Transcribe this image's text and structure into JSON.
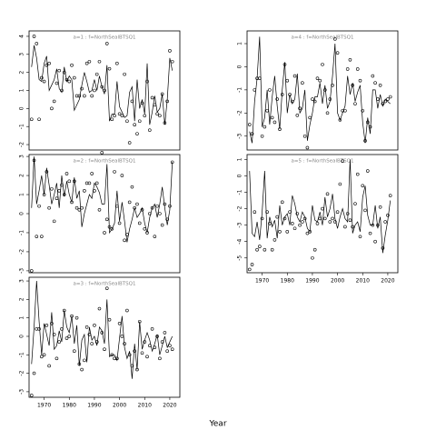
{
  "xlabel": "Year",
  "chart_data": [
    {
      "type": "line",
      "title": "a=1 : f=NorthSealBTSQ1",
      "x": [
        1965,
        1966,
        1967,
        1968,
        1969,
        1970,
        1971,
        1972,
        1973,
        1974,
        1975,
        1976,
        1977,
        1978,
        1979,
        1980,
        1981,
        1982,
        1983,
        1984,
        1985,
        1986,
        1987,
        1988,
        1989,
        1990,
        1991,
        1992,
        1993,
        1994,
        1995,
        1996,
        1997,
        1998,
        1999,
        2000,
        2001,
        2002,
        2003,
        2004,
        2005,
        2006,
        2007,
        2008,
        2009,
        2010,
        2011,
        2012,
        2013,
        2014,
        2015,
        2016,
        2017,
        2018,
        2019,
        2020,
        2021
      ],
      "xlim": [
        1964,
        2024
      ],
      "ylim": [
        -2.3,
        4.3
      ],
      "yticks": [
        -2,
        -1,
        0,
        1,
        2,
        3,
        4
      ],
      "series": [
        {
          "type": "line",
          "color": "#000000",
          "values": [
            2.3,
            3.5,
            2.8,
            1.6,
            1.5,
            2.5,
            2.9,
            1.0,
            1.3,
            1.6,
            2.2,
            1.1,
            0.9,
            2.3,
            1.5,
            1.8,
            1.6,
            -0.1,
            0.2,
            0.5,
            1.3,
            2.0,
            1.5,
            0.9,
            1.0,
            1.6,
            1.0,
            1.8,
            1.2,
            0.8,
            2.4,
            -0.7,
            -0.3,
            -0.3,
            1.5,
            0.1,
            -0.2,
            -0.5,
            -0.4,
            0.9,
            1.2,
            -0.7,
            1.6,
            0.0,
            0.5,
            -0.3,
            2.5,
            -0.9,
            -0.2,
            0.7,
            -0.2,
            0.0,
            0.8,
            -0.9,
            0.5,
            2.8,
            2.1
          ]
        },
        {
          "type": "scatter",
          "color": "#000000",
          "values": [
            -0.6,
            4.0,
            3.6,
            -0.6,
            1.7,
            1.5,
            2.4,
            2.5,
            0.0,
            0.4,
            1.4,
            2.1,
            1.0,
            2.0,
            1.6,
            1.5,
            2.4,
            1.7,
            0.7,
            0.7,
            1.1,
            0.7,
            2.5,
            2.6,
            0.7,
            1.0,
            1.9,
            2.6,
            1.2,
            1.0,
            3.6,
            2.2,
            -0.6,
            -0.4,
            2.5,
            -0.3,
            -0.4,
            1.9,
            -0.7,
            -1.9,
            0.4,
            -0.9,
            -1.4,
            -0.7,
            0.3,
            -0.4,
            1.5,
            -1.2,
            0.6,
            0.2,
            -0.3,
            -0.4,
            0.8,
            -0.8,
            0.4,
            3.2,
            2.6
          ]
        }
      ]
    },
    {
      "type": "line",
      "title": "a=2 : f=NorthSealBTSQ1",
      "x": [
        1965,
        1966,
        1967,
        1968,
        1969,
        1970,
        1971,
        1972,
        1973,
        1974,
        1975,
        1976,
        1977,
        1978,
        1979,
        1980,
        1981,
        1982,
        1983,
        1984,
        1985,
        1986,
        1987,
        1988,
        1989,
        1990,
        1991,
        1992,
        1993,
        1994,
        1995,
        1996,
        1997,
        1998,
        1999,
        2000,
        2001,
        2002,
        2003,
        2004,
        2005,
        2006,
        2007,
        2008,
        2009,
        2010,
        2011,
        2012,
        2013,
        2014,
        2015,
        2016,
        2017,
        2018,
        2019,
        2020,
        2021
      ],
      "xlim": [
        1964,
        2024
      ],
      "ylim": [
        -3.1,
        3.1
      ],
      "yticks": [
        -3,
        -2,
        -1,
        0,
        1,
        2,
        3
      ],
      "series": [
        {
          "type": "line",
          "color": "#000000",
          "values": [
            0.3,
            3.0,
            0.5,
            1.2,
            2.0,
            1.0,
            2.4,
            1.5,
            0.5,
            1.0,
            1.6,
            0.3,
            2.0,
            0.9,
            1.7,
            1.0,
            0.6,
            1.9,
            0.8,
            1.2,
            -0.7,
            0.0,
            0.5,
            1.0,
            0.8,
            1.6,
            1.4,
            1.1,
            0.5,
            0.5,
            2.6,
            -1.0,
            -0.8,
            -0.5,
            1.2,
            -0.4,
            0.6,
            -0.4,
            -1.5,
            -0.8,
            -0.3,
            0.3,
            -0.2,
            0.0,
            0.3,
            -0.5,
            -1.0,
            -0.2,
            0.3,
            0.5,
            -0.2,
            0.5,
            1.4,
            0.3,
            -0.6,
            0.2,
            2.7
          ]
        },
        {
          "type": "scatter",
          "color": "#000000",
          "values": [
            -3.0,
            2.8,
            -1.2,
            0.4,
            -1.2,
            1.0,
            2.2,
            0.3,
            1.3,
            -0.4,
            0.8,
            1.2,
            1.5,
            1.0,
            2.1,
            1.7,
            0.6,
            1.7,
            0.3,
            0.2,
            0.3,
            1.2,
            1.6,
            1.6,
            2.1,
            1.2,
            1.6,
            0.2,
            3.2,
            -1.0,
            -0.3,
            -0.7,
            -0.8,
            2.2,
            0.4,
            -0.5,
            2.0,
            -1.4,
            -1.1,
            0.6,
            1.4,
            0.3,
            0.5,
            -0.5,
            0.2,
            -0.8,
            -1.0,
            0.0,
            0.3,
            -1.2,
            0.4,
            0.0,
            -0.6,
            0.5,
            -0.3,
            0.4,
            2.7
          ]
        }
      ]
    },
    {
      "type": "line",
      "title": "a=3 : f=NorthSealBTSQ1",
      "x": [
        1965,
        1966,
        1967,
        1968,
        1969,
        1970,
        1971,
        1972,
        1973,
        1974,
        1975,
        1976,
        1977,
        1978,
        1979,
        1980,
        1981,
        1982,
        1983,
        1984,
        1985,
        1986,
        1987,
        1988,
        1989,
        1990,
        1991,
        1992,
        1993,
        1994,
        1995,
        1996,
        1997,
        1998,
        1999,
        2000,
        2001,
        2002,
        2003,
        2004,
        2005,
        2006,
        2007,
        2008,
        2009,
        2010,
        2011,
        2012,
        2013,
        2014,
        2015,
        2016,
        2017,
        2018,
        2019,
        2020,
        2021
      ],
      "xlim": [
        1964,
        2024
      ],
      "ylim": [
        -3.3,
        3.2
      ],
      "yticks": [
        -3,
        -2,
        -1,
        0,
        1,
        2,
        3
      ],
      "xticks": [
        1970,
        1980,
        1990,
        2000,
        2010,
        2020
      ],
      "series": [
        {
          "type": "line",
          "color": "#000000",
          "values": [
            -1.5,
            0.5,
            3.0,
            0.8,
            -1.0,
            0.7,
            0.1,
            -0.5,
            1.3,
            -0.7,
            -0.5,
            0.3,
            -0.3,
            1.4,
            0.5,
            0.2,
            1.1,
            -0.4,
            0.6,
            -1.6,
            -0.2,
            0.1,
            -1.4,
            0.5,
            -0.2,
            0.0,
            -0.5,
            0.5,
            0.3,
            -0.4,
            2.0,
            -1.1,
            -1.0,
            -1.0,
            -1.3,
            -0.1,
            1.1,
            -0.6,
            -1.2,
            -0.8,
            -2.3,
            -0.4,
            -1.8,
            0.8,
            -0.7,
            -0.2,
            0.2,
            -0.2,
            -0.8,
            -0.4,
            0.1,
            -1.0,
            -0.5,
            0.0,
            -0.6,
            -0.3,
            0.0
          ]
        },
        {
          "type": "scatter",
          "color": "#000000",
          "values": [
            -3.2,
            -2.0,
            0.4,
            0.4,
            -1.1,
            -1.0,
            0.6,
            -1.6,
            0.7,
            0.1,
            -1.2,
            -0.3,
            0.4,
            1.4,
            -0.1,
            0.0,
            1.1,
            -0.8,
            1.0,
            -1.5,
            -1.8,
            -1.3,
            0.5,
            0.1,
            -0.4,
            0.6,
            -0.3,
            1.5,
            0.2,
            -0.7,
            2.6,
            0.9,
            -1.0,
            -1.2,
            -1.2,
            0.7,
            0.0,
            -0.4,
            1.4,
            -1.0,
            -1.6,
            -0.8,
            -1.8,
            0.8,
            -0.9,
            -0.3,
            -1.1,
            -0.5,
            0.4,
            -0.6,
            0.0,
            -1.2,
            -0.3,
            0.2,
            -0.8,
            -0.5,
            -0.7
          ]
        }
      ]
    },
    {
      "type": "line",
      "title": "a=4 : f=NorthSealBTSQ1",
      "x": [
        1965,
        1966,
        1967,
        1968,
        1969,
        1970,
        1971,
        1972,
        1973,
        1974,
        1975,
        1976,
        1977,
        1978,
        1979,
        1980,
        1981,
        1982,
        1983,
        1984,
        1985,
        1986,
        1987,
        1988,
        1989,
        1990,
        1991,
        1992,
        1993,
        1994,
        1995,
        1996,
        1997,
        1998,
        1999,
        2000,
        2001,
        2002,
        2003,
        2004,
        2005,
        2006,
        2007,
        2008,
        2009,
        2010,
        2011,
        2012,
        2013,
        2014,
        2015,
        2016,
        2017,
        2018,
        2019,
        2020,
        2021
      ],
      "xlim": [
        1964,
        2024
      ],
      "ylim": [
        -3.6,
        1.55
      ],
      "yticks": [
        -3,
        -2,
        -1,
        0,
        1
      ],
      "series": [
        {
          "type": "line",
          "color": "#000000",
          "values": [
            -2.8,
            -3.3,
            -1.5,
            -0.5,
            1.3,
            -2.6,
            -2.2,
            -1.0,
            -2.5,
            -1.3,
            -0.4,
            -1.7,
            -2.7,
            -1.0,
            0.2,
            -2.0,
            -1.2,
            -1.6,
            -1.4,
            -0.3,
            -2.0,
            -1.8,
            -1.0,
            -3.2,
            -2.5,
            -2.0,
            -1.3,
            -1.3,
            -0.7,
            -1.6,
            -0.8,
            -1.8,
            -1.5,
            -0.4,
            1.0,
            -2.0,
            -2.3,
            -2.0,
            -1.7,
            -0.4,
            -1.2,
            -0.7,
            -1.5,
            -1.1,
            -0.8,
            -2.4,
            -3.3,
            -2.2,
            -2.9,
            -1.0,
            -1.0,
            -1.8,
            -1.2,
            -1.7,
            -1.4,
            -1.5,
            -1.6
          ]
        },
        {
          "type": "scatter",
          "color": "#000000",
          "values": [
            -2.5,
            -2.9,
            -1.0,
            -0.5,
            -0.5,
            -3.0,
            -2.6,
            -1.9,
            -1.0,
            -2.2,
            -2.4,
            -1.4,
            -2.7,
            -1.2,
            0.1,
            -0.6,
            -1.2,
            -1.5,
            -0.4,
            -2.1,
            -1.8,
            -0.7,
            -3.0,
            -3.5,
            -2.2,
            -1.4,
            -1.5,
            -0.5,
            -0.6,
            0.1,
            -1.0,
            -2.0,
            -1.4,
            -0.8,
            1.2,
            0.6,
            -2.3,
            -1.9,
            -1.9,
            -0.1,
            0.3,
            -0.8,
            -1.6,
            -0.1,
            -0.6,
            -1.9,
            -3.2,
            -2.4,
            -2.6,
            -0.4,
            -0.7,
            -1.4,
            -0.8,
            -1.6,
            -1.5,
            -1.4,
            -1.3
          ]
        }
      ]
    },
    {
      "type": "line",
      "title": "a=5 : f=NorthSealBTSQ1",
      "x": [
        1965,
        1966,
        1967,
        1968,
        1969,
        1970,
        1971,
        1972,
        1973,
        1974,
        1975,
        1976,
        1977,
        1978,
        1979,
        1980,
        1981,
        1982,
        1983,
        1984,
        1985,
        1986,
        1987,
        1988,
        1989,
        1990,
        1991,
        1992,
        1993,
        1994,
        1995,
        1996,
        1997,
        1998,
        1999,
        2000,
        2001,
        2002,
        2003,
        2004,
        2005,
        2006,
        2007,
        2008,
        2009,
        2010,
        2011,
        2012,
        2013,
        2014,
        2015,
        2016,
        2017,
        2018,
        2019,
        2020,
        2021
      ],
      "xlim": [
        1964,
        2024
      ],
      "ylim": [
        -5.9,
        1.3
      ],
      "yticks": [
        -5,
        -4,
        -3,
        -2,
        -1,
        0,
        1
      ],
      "xticks": [
        1970,
        1980,
        1990,
        2000,
        2010,
        2020
      ],
      "series": [
        {
          "type": "line",
          "color": "#000000",
          "values": [
            0.3,
            -3.5,
            -3.7,
            -2.8,
            -3.9,
            -2.2,
            0.3,
            -3.8,
            -2.5,
            -3.1,
            -2.7,
            -3.8,
            -1.8,
            -3.0,
            -2.5,
            -2.3,
            -3.0,
            -1.2,
            -1.7,
            -2.5,
            -2.8,
            -2.2,
            -2.5,
            -3.2,
            -3.4,
            -1.8,
            -2.7,
            -2.8,
            -2.2,
            -3.0,
            -1.3,
            -2.5,
            -2.0,
            -1.1,
            -2.6,
            -3.2,
            -2.5,
            -2.0,
            -2.6,
            -2.8,
            1.0,
            -3.5,
            -3.0,
            -2.8,
            -3.4,
            -1.3,
            -0.6,
            -2.4,
            -3.0,
            -3.0,
            -1.8,
            -3.2,
            -2.5,
            -4.7,
            -3.6,
            -2.7,
            -1.5
          ]
        },
        {
          "type": "scatter",
          "color": "#000000",
          "values": [
            -5.7,
            -5.4,
            -2.2,
            -4.5,
            -4.3,
            -2.6,
            -4.5,
            -2.2,
            -2.9,
            -4.5,
            -3.9,
            -2.5,
            -3.4,
            -1.6,
            -2.6,
            -3.4,
            -2.2,
            -2.9,
            -3.2,
            -2.3,
            -3.0,
            -2.8,
            -2.6,
            -3.5,
            -3.4,
            -5.0,
            -4.5,
            -2.9,
            -2.6,
            -2.0,
            -2.6,
            -1.1,
            -2.8,
            -2.6,
            -2.8,
            -2.2,
            -0.5,
            0.9,
            -3.1,
            -2.3,
            -2.7,
            -3.1,
            -1.7,
            0.1,
            -3.7,
            -0.6,
            -2.1,
            0.3,
            -3.5,
            -3.0,
            -4.0,
            -3.0,
            -1.9,
            -4.4,
            -2.8,
            -2.4,
            -1.2
          ]
        }
      ]
    }
  ]
}
